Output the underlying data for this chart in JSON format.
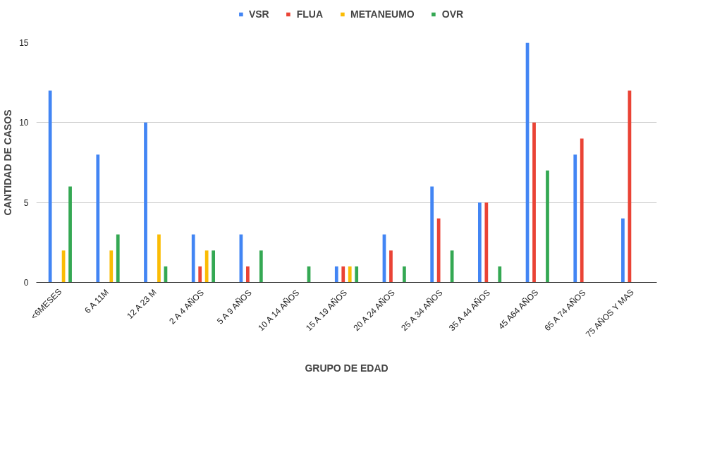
{
  "chart_data": {
    "type": "bar",
    "xlabel": "GRUPO DE EDAD",
    "ylabel": "CANTIDAD DE CASOS",
    "categories": [
      "<6MESES",
      "6 A 11M",
      "12 A 23 M",
      "2 A 4 AÑOS",
      "5 A 9 AÑOS",
      "10 A 14 AÑOS",
      "15 A 19 AÑOS",
      "20 A 24 AÑOS",
      "25 A 34 AÑOS",
      "35 A 44 AÑOS",
      "45 A64 AÑOS",
      "65 A 74 AÑOS",
      "75 AÑOS Y MAS"
    ],
    "series": [
      {
        "name": "VSR",
        "color": "#4285f4",
        "values": [
          12,
          8,
          10,
          3,
          3,
          0,
          1,
          3,
          6,
          5,
          15,
          8,
          4
        ]
      },
      {
        "name": "FLUA",
        "color": "#ea4335",
        "values": [
          0,
          0,
          0,
          1,
          1,
          0,
          1,
          2,
          4,
          5,
          10,
          9,
          12
        ]
      },
      {
        "name": "METANEUMO",
        "color": "#fbbc04",
        "values": [
          2,
          2,
          3,
          2,
          0,
          0,
          1,
          0,
          0,
          0,
          0,
          0,
          0
        ]
      },
      {
        "name": "OVR",
        "color": "#34a853",
        "values": [
          6,
          3,
          1,
          2,
          2,
          1,
          1,
          1,
          2,
          1,
          7,
          0,
          0
        ]
      }
    ],
    "ylim": [
      0,
      15
    ],
    "yticks": [
      0,
      5,
      10,
      15
    ],
    "grid": "y",
    "legend": "top"
  }
}
